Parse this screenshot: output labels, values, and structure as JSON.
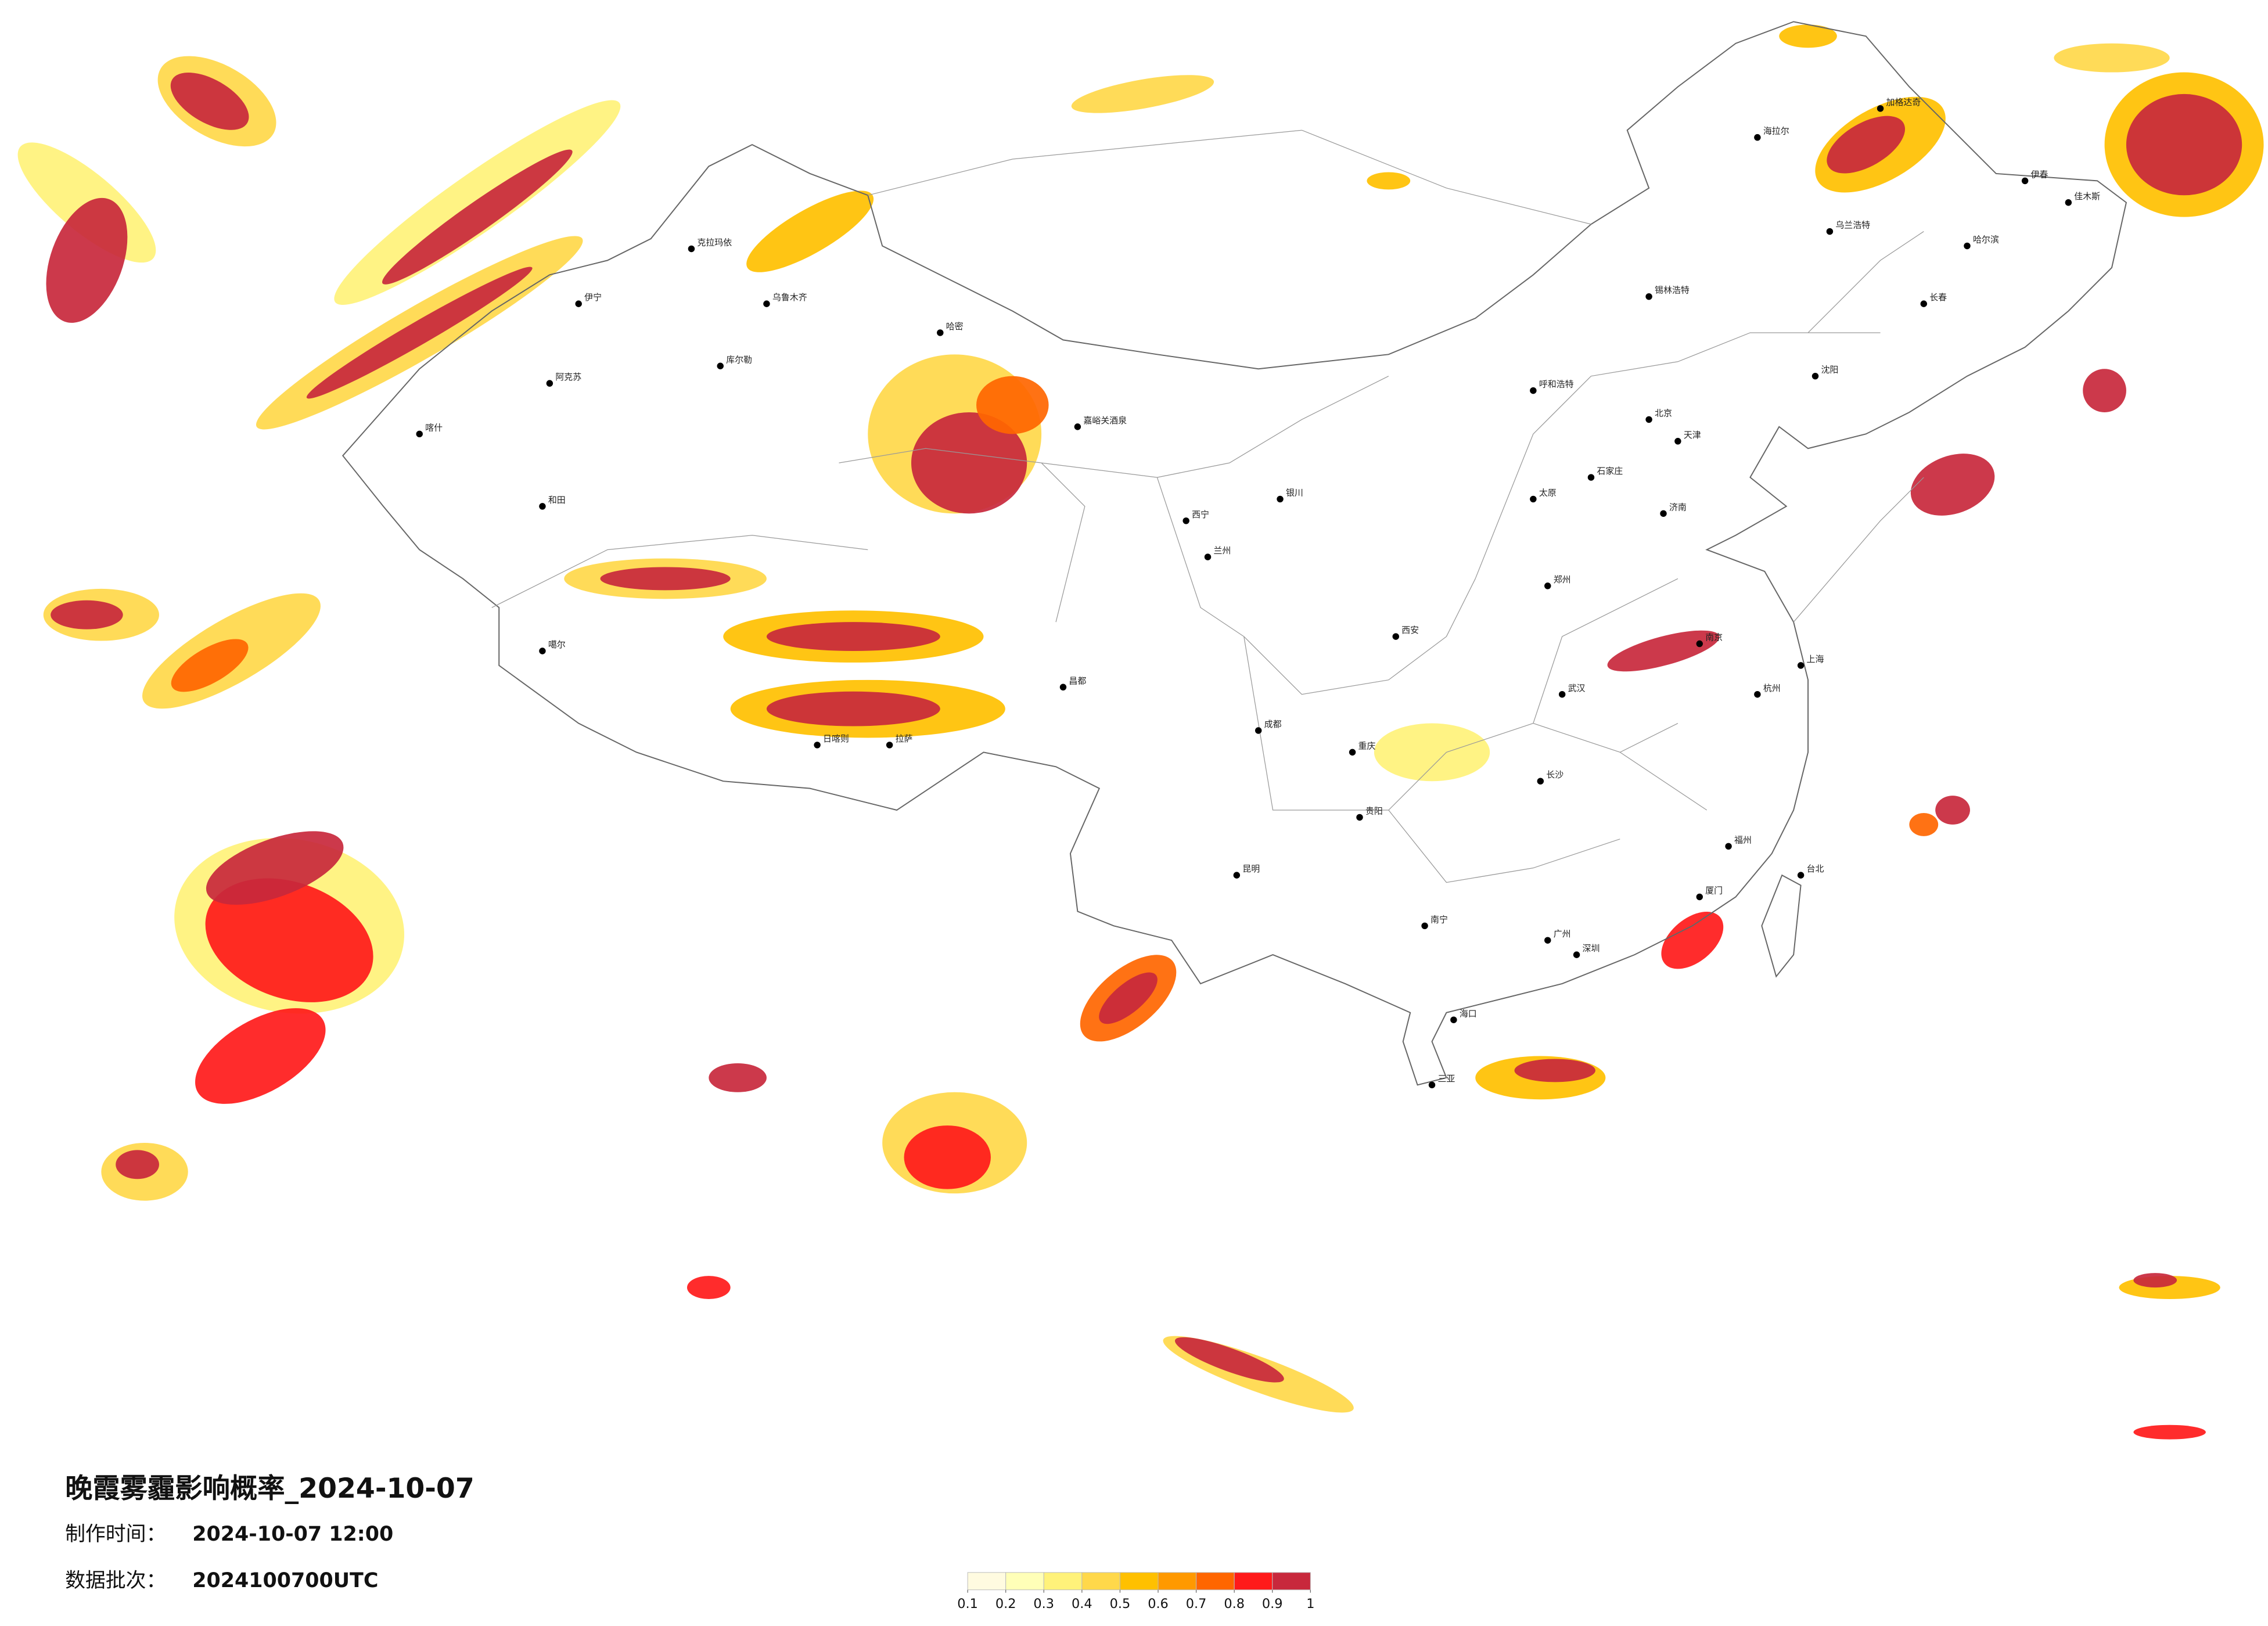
{
  "title": "晚霞雾霾影响概率_2024-10-07",
  "info": [
    {
      "label": "制作时间：",
      "value": "2024-10-07 12:00"
    },
    {
      "label": "数据批次：",
      "value": "2024100700UTC"
    }
  ],
  "legend": {
    "colors": [
      "#fffbe0",
      "#ffffb8",
      "#fff27a",
      "#ffd84a",
      "#ffc000",
      "#ff9900",
      "#ff6600",
      "#ff1a1a",
      "#c8283c"
    ],
    "ticks": [
      0.1,
      0.2,
      0.3,
      0.4,
      0.5,
      0.6,
      0.7,
      0.8,
      0.9,
      1
    ]
  },
  "cities": [
    "克拉玛依",
    "伊宁",
    "乌鲁木齐",
    "库尔勒",
    "哈密",
    "阿克苏",
    "喀什",
    "和田",
    "嘉峪关酒泉",
    "西宁",
    "兰州",
    "拉萨",
    "日喀则",
    "噶尔",
    "昌都",
    "成都",
    "重庆",
    "昆明",
    "贵阳",
    "南宁",
    "海口",
    "三亚",
    "广州",
    "深圳",
    "厦门",
    "福州",
    "台北",
    "杭州",
    "上海",
    "南京",
    "武汉",
    "长沙",
    "郑州",
    "西安",
    "太原",
    "石家庄",
    "北京",
    "天津",
    "济南",
    "呼和浩特",
    "银川",
    "沈阳",
    "长春",
    "哈尔滨",
    "海拉尔",
    "锡林浩特",
    "加格达奇",
    "乌兰浩特",
    "伊春",
    "佳木斯"
  ]
}
